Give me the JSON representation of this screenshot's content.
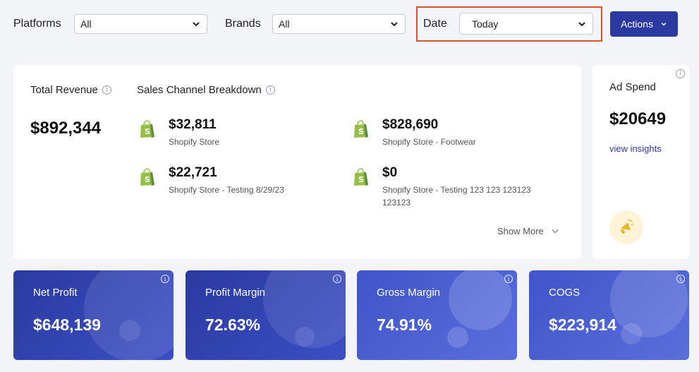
{
  "filters": {
    "platforms": {
      "label": "Platforms",
      "value": "All"
    },
    "brands": {
      "label": "Brands",
      "value": "All"
    },
    "date": {
      "label": "Date",
      "value": "Today"
    },
    "actions_label": "Actions"
  },
  "revenue": {
    "total_title": "Total Revenue",
    "total_value": "$892,344",
    "breakdown_title": "Sales Channel Breakdown",
    "channels": [
      {
        "amount": "$32,811",
        "name": "Shopify Store"
      },
      {
        "amount": "$828,690",
        "name": "Shopify Store - Footwear"
      },
      {
        "amount": "$22,721",
        "name": "Shopify Store - Testing 8/29/23"
      },
      {
        "amount": "$0",
        "name": "Shopify Store - Testing 123 123 123123 123123"
      }
    ],
    "show_more": "Show More"
  },
  "ad_spend": {
    "title": "Ad Spend",
    "value": "$20649",
    "link": "view insights"
  },
  "metrics": [
    {
      "title": "Net Profit",
      "value": "$648,139"
    },
    {
      "title": "Profit Margin",
      "value": "72.63%"
    },
    {
      "title": "Gross Margin",
      "value": "74.91%"
    },
    {
      "title": "COGS",
      "value": "$223,914"
    }
  ],
  "colors": {
    "accent": "#2a3aa0",
    "highlight_border": "#e0502a",
    "shopify_green": "#95bf47"
  }
}
